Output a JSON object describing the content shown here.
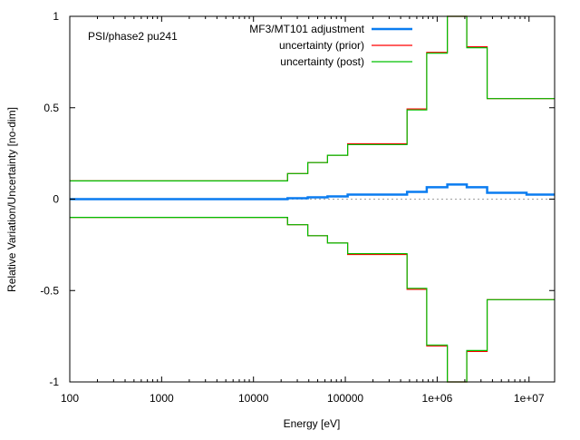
{
  "chart_data": {
    "type": "line",
    "title": "PSI/phase2 pu241",
    "xlabel": "Energy [eV]",
    "ylabel": "Relative Variation/Uncertainty [no-dim]",
    "xscale": "log",
    "xlim": [
      100,
      19000000
    ],
    "ylim": [
      -1,
      1
    ],
    "xticks": [
      {
        "v": 100,
        "label": "100"
      },
      {
        "v": 1000,
        "label": "1000"
      },
      {
        "v": 10000,
        "label": "10000"
      },
      {
        "v": 100000,
        "label": "100000"
      },
      {
        "v": 1000000,
        "label": "1e+06"
      },
      {
        "v": 10000000,
        "label": "1e+07"
      }
    ],
    "yticks": [
      {
        "v": 1,
        "label": "1"
      },
      {
        "v": 0.5,
        "label": "0.5"
      },
      {
        "v": 0,
        "label": "0"
      },
      {
        "v": -0.5,
        "label": "-0.5"
      },
      {
        "v": -1,
        "label": "-1"
      }
    ],
    "legend_position": "top-right",
    "bin_edges": [
      100,
      23500,
      39000,
      64000,
      106000,
      470000,
      770000,
      1290000,
      2100000,
      3500000,
      9400000,
      19000000
    ],
    "series": [
      {
        "name": "MF3/MT101 adjustment",
        "color": "#0a7cf0",
        "width": 2.5,
        "values": [
          0,
          0.005,
          0.01,
          0.015,
          0.025,
          0.04,
          0.065,
          0.08,
          0.065,
          0.035,
          0.025
        ],
        "mirror": false
      },
      {
        "name": "uncertainty (prior)",
        "color": "#ff0000",
        "width": 1.2,
        "values": [
          0.1,
          0.14,
          0.2,
          0.24,
          0.303,
          0.493,
          0.803,
          1.0,
          0.833,
          0.55,
          0.55
        ],
        "mirror": true
      },
      {
        "name": "uncertainty (post)",
        "color": "#00c000",
        "width": 1.2,
        "values": [
          0.1,
          0.14,
          0.2,
          0.24,
          0.298,
          0.488,
          0.798,
          1.0,
          0.828,
          0.55,
          0.55
        ],
        "mirror": true
      }
    ]
  }
}
